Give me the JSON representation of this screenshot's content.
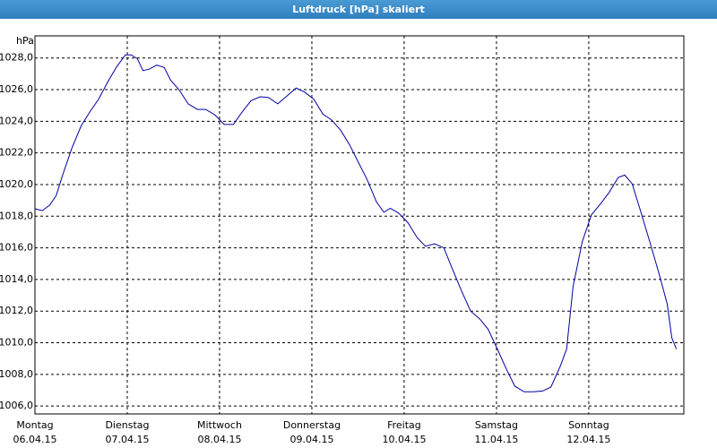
{
  "chart_data": {
    "type": "line",
    "title": "Luftdruck [hPa] skaliert",
    "y_label": "hPa",
    "color": "#0000a0",
    "grid": true,
    "xlim": [
      0,
      7.03
    ],
    "ylim": [
      1005.5,
      1029.4
    ],
    "yticks": [
      {
        "value": 1006,
        "label": "1006,0"
      },
      {
        "value": 1008,
        "label": "1008,0"
      },
      {
        "value": 1010,
        "label": "1010,0"
      },
      {
        "value": 1012,
        "label": "1012,0"
      },
      {
        "value": 1014,
        "label": "1014,0"
      },
      {
        "value": 1016,
        "label": "1016,0"
      },
      {
        "value": 1018,
        "label": "1018,0"
      },
      {
        "value": 1020,
        "label": "1020,0"
      },
      {
        "value": 1022,
        "label": "1022,0"
      },
      {
        "value": 1024,
        "label": "1024,0"
      },
      {
        "value": 1026,
        "label": "1026,0"
      },
      {
        "value": 1028,
        "label": "1028,0"
      }
    ],
    "xticks": [
      {
        "value": 0,
        "label": "Montag",
        "date": "06.04.15"
      },
      {
        "value": 1,
        "label": "Dienstag",
        "date": "07.04.15"
      },
      {
        "value": 2,
        "label": "Mittwoch",
        "date": "08.04.15"
      },
      {
        "value": 3,
        "label": "Donnerstag",
        "date": "09.04.15"
      },
      {
        "value": 4,
        "label": "Freitag",
        "date": "10.04.15"
      },
      {
        "value": 5,
        "label": "Samstag",
        "date": "11.04.15"
      },
      {
        "value": 6,
        "label": "Sonntag",
        "date": "12.04.15"
      }
    ],
    "x": [
      0,
      0.08,
      0.16,
      0.23,
      0.3,
      0.4,
      0.5,
      0.59,
      0.69,
      0.79,
      0.88,
      0.98,
      1.04,
      1.11,
      1.17,
      1.24,
      1.32,
      1.4,
      1.47,
      1.56,
      1.66,
      1.76,
      1.85,
      1.95,
      2.05,
      2.15,
      2.24,
      2.34,
      2.44,
      2.53,
      2.63,
      2.71,
      2.83,
      2.92,
      3.02,
      3.12,
      3.21,
      3.31,
      3.41,
      3.5,
      3.6,
      3.7,
      3.78,
      3.85,
      3.94,
      4.04,
      4.14,
      4.23,
      4.33,
      4.43,
      4.52,
      4.62,
      4.72,
      4.82,
      4.91,
      5.01,
      5.11,
      5.2,
      5.3,
      5.4,
      5.5,
      5.59,
      5.69,
      5.76,
      5.83,
      5.93,
      6.03,
      6.13,
      6.22,
      6.32,
      6.39,
      6.47,
      6.56,
      6.66,
      6.76,
      6.85,
      6.9,
      6.95
    ],
    "values": [
      1018.47,
      1018.35,
      1018.7,
      1019.3,
      1020.6,
      1022.3,
      1023.7,
      1024.55,
      1025.4,
      1026.5,
      1027.4,
      1028.2,
      1028.2,
      1027.95,
      1027.2,
      1027.3,
      1027.55,
      1027.4,
      1026.6,
      1026.0,
      1025.1,
      1024.75,
      1024.75,
      1024.4,
      1023.8,
      1023.8,
      1024.55,
      1025.3,
      1025.55,
      1025.5,
      1025.1,
      1025.5,
      1026.1,
      1025.85,
      1025.4,
      1024.45,
      1024.1,
      1023.45,
      1022.5,
      1021.45,
      1020.3,
      1018.9,
      1018.25,
      1018.5,
      1018.2,
      1017.6,
      1016.65,
      1016.1,
      1016.25,
      1016.0,
      1014.7,
      1013.3,
      1012.0,
      1011.5,
      1010.85,
      1009.6,
      1008.3,
      1007.25,
      1006.9,
      1006.9,
      1006.95,
      1007.2,
      1008.5,
      1009.6,
      1013.55,
      1016.4,
      1018.1,
      1018.8,
      1019.5,
      1020.45,
      1020.6,
      1020.05,
      1018.35,
      1016.4,
      1014.4,
      1012.45,
      1010.3,
      1009.6
    ]
  }
}
